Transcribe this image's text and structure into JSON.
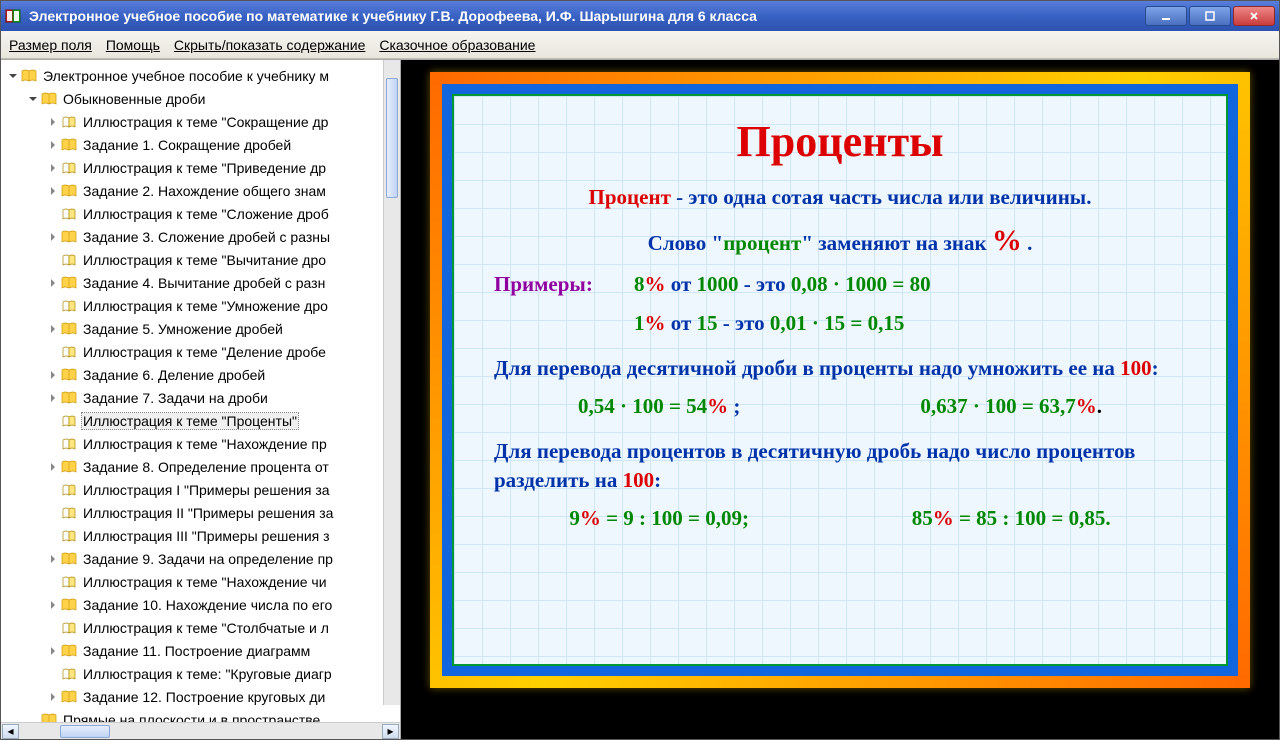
{
  "window": {
    "title": "Электронное учебное пособие по математике к учебнику Г.В. Дорофеева, И.Ф. Шарышгина для 6 класса"
  },
  "menu": {
    "items": [
      "Размер поля",
      "Помощь",
      "Скрыть/показать содержание",
      "Сказочное образование"
    ]
  },
  "tree": {
    "root": "Электронное учебное пособие к учебнику м",
    "branch": "Обыкновенные дроби",
    "items": [
      {
        "label": "Иллюстрация к теме \"Сокращение др",
        "exp": true
      },
      {
        "label": "Задание 1. Сокращение дробей",
        "exp": true
      },
      {
        "label": "Иллюстрация к теме \"Приведение др",
        "exp": true
      },
      {
        "label": "Задание 2. Нахождение общего знам",
        "exp": true
      },
      {
        "label": "Иллюстрация к теме \"Сложение дроб",
        "exp": false
      },
      {
        "label": "Задание 3. Сложение дробей с разны",
        "exp": true
      },
      {
        "label": "Иллюстрация к теме \"Вычитание дро",
        "exp": false
      },
      {
        "label": "Задание 4. Вычитание дробей с разн",
        "exp": true
      },
      {
        "label": "Иллюстрация к теме \"Умножение дро",
        "exp": false
      },
      {
        "label": "Задание 5. Умножение дробей",
        "exp": true
      },
      {
        "label": "Иллюстрация к теме \"Деление дробе",
        "exp": false
      },
      {
        "label": "Задание 6. Деление дробей",
        "exp": true
      },
      {
        "label": "Задание 7. Задачи на дроби",
        "exp": true
      },
      {
        "label": "Иллюстрация к теме \"Проценты\"",
        "exp": false,
        "selected": true
      },
      {
        "label": "Иллюстрация к теме \"Нахождение пр",
        "exp": false
      },
      {
        "label": "Задание 8. Определение процента от",
        "exp": true
      },
      {
        "label": "Иллюстрация I \"Примеры решения за",
        "exp": false
      },
      {
        "label": "Иллюстрация II \"Примеры решения за",
        "exp": false
      },
      {
        "label": "Иллюстрация III \"Примеры решения з",
        "exp": false
      },
      {
        "label": "Задание 9. Задачи на определение пр",
        "exp": true
      },
      {
        "label": "Иллюстрация к теме \"Нахождение чи",
        "exp": false
      },
      {
        "label": "Задание 10. Нахождение числа по его",
        "exp": true
      },
      {
        "label": "Иллюстрация к теме \"Столбчатые и л",
        "exp": false
      },
      {
        "label": "Задание 11. Построение диаграмм",
        "exp": true
      },
      {
        "label": "Иллюстрация к теме: \"Круговые диагр",
        "exp": false
      },
      {
        "label": "Задание 12. Построение круговых ди",
        "exp": true
      },
      {
        "label": "Прямые на плоскости и в пространстве",
        "exp": false,
        "branch": true
      }
    ]
  },
  "slide": {
    "title": "Проценты",
    "def_word": "Процент",
    "def_rest": " - это одна сотая часть числа или величины.",
    "line2_a": "Слово \"",
    "line2_b": "процент",
    "line2_c": "\" заменяют на знак  ",
    "pct": "%",
    "dot": " .",
    "examples_label": "Примеры:",
    "ex1_a": "8",
    "ex1_b": " от ",
    "ex1_c": "1000",
    "ex1_d": " - это ",
    "ex1_e": "0,08 · 1000 = 80",
    "ex2_a": "1",
    "ex2_c": "15",
    "ex2_e": "0,01 · 15 = 0,15",
    "rule1_a": "Для перевода десятичной дроби в проценты надо умножить ее на ",
    "rule1_b": "100",
    "rule1_c": ":",
    "calc1_a": "0,54 · 100 = 54",
    "calc1_b": " ;",
    "calc2_a": "0,637 · 100 = 63,7",
    "calc2_b": ".",
    "rule2_a": "Для перевода процентов в десятичную дробь надо число процентов разделить на ",
    "calc3_a": "9",
    "calc3_b": " = 9 : 100 = 0,09;",
    "calc4_a": "85",
    "calc4_b": " = 85 : 100 = 0,85."
  },
  "colors": {
    "title_bg": "#3862c3",
    "accent_orange": "#ff7a00",
    "accent_blue": "#1166dd",
    "grid": "#cfe6f7",
    "red": "#d00000",
    "blue": "#0033aa",
    "green": "#008800",
    "purple": "#9000a0"
  }
}
